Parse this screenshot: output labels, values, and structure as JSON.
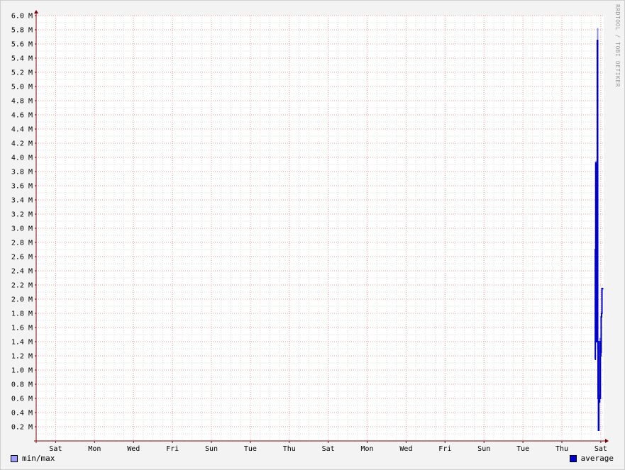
{
  "chart_data": {
    "type": "line",
    "watermark": "RRDTOOL / TOBI OETIKER",
    "y_ticks": [
      "0.2 M",
      "0.4 M",
      "0.6 M",
      "0.8 M",
      "1.0 M",
      "1.2 M",
      "1.4 M",
      "1.6 M",
      "1.8 M",
      "2.0 M",
      "2.2 M",
      "2.4 M",
      "2.6 M",
      "2.8 M",
      "3.0 M",
      "3.2 M",
      "3.4 M",
      "3.6 M",
      "3.8 M",
      "4.0 M",
      "4.2 M",
      "4.4 M",
      "4.6 M",
      "4.8 M",
      "5.0 M",
      "5.2 M",
      "5.4 M",
      "5.6 M",
      "5.8 M",
      "6.0 M"
    ],
    "y_tick_values": [
      0.2,
      0.4,
      0.6,
      0.8,
      1.0,
      1.2,
      1.4,
      1.6,
      1.8,
      2.0,
      2.2,
      2.4,
      2.6,
      2.8,
      3.0,
      3.2,
      3.4,
      3.6,
      3.8,
      4.0,
      4.2,
      4.4,
      4.6,
      4.8,
      5.0,
      5.2,
      5.4,
      5.6,
      5.8,
      6.0
    ],
    "ylim": [
      0,
      6.0
    ],
    "x_ticks": [
      "Sat",
      "Mon",
      "Wed",
      "Fri",
      "Sun",
      "Tue",
      "Thu",
      "Sat",
      "Mon",
      "Wed",
      "Fri",
      "Sun",
      "Tue",
      "Thu",
      "Sat"
    ],
    "x_tick_days": [
      1,
      3,
      5,
      7,
      9,
      11,
      13,
      15,
      17,
      19,
      21,
      23,
      25,
      27,
      29
    ],
    "xlim": [
      0,
      29.15
    ],
    "grid": true,
    "legend_placement": "bottom",
    "colors": {
      "minmax": "#9c9cff",
      "average": "#0000cc",
      "grid_major": "#f0a0a0",
      "grid_minor": "#dcdcdc",
      "axis": "#800000"
    },
    "series": [
      {
        "name": "min/max",
        "type": "band",
        "x": [
          28.7,
          28.74,
          28.78,
          28.82,
          28.86,
          28.9,
          28.94,
          28.98,
          29.02,
          29.06,
          29.1
        ],
        "min": [
          1.15,
          2.1,
          1.4,
          1.3,
          0.15,
          0.55,
          0.6,
          1.2,
          1.75,
          2.15,
          2.15
        ],
        "max": [
          2.7,
          3.95,
          2.15,
          5.82,
          0.65,
          0.55,
          1.45,
          1.3,
          1.8,
          2.15,
          2.15
        ]
      },
      {
        "name": "average",
        "type": "step",
        "x": [
          28.7,
          28.72,
          28.74,
          28.76,
          28.78,
          28.8,
          28.82,
          28.84,
          28.86,
          28.88,
          28.9,
          28.92,
          28.94,
          28.96,
          28.98,
          29.0,
          29.02,
          29.04,
          29.06,
          29.08,
          29.1
        ],
        "values": [
          1.15,
          2.7,
          3.92,
          2.1,
          1.4,
          3.25,
          5.65,
          1.4,
          0.6,
          0.15,
          0.55,
          0.55,
          1.4,
          0.6,
          1.2,
          1.25,
          1.75,
          1.8,
          2.15,
          2.15,
          2.15
        ]
      }
    ]
  }
}
